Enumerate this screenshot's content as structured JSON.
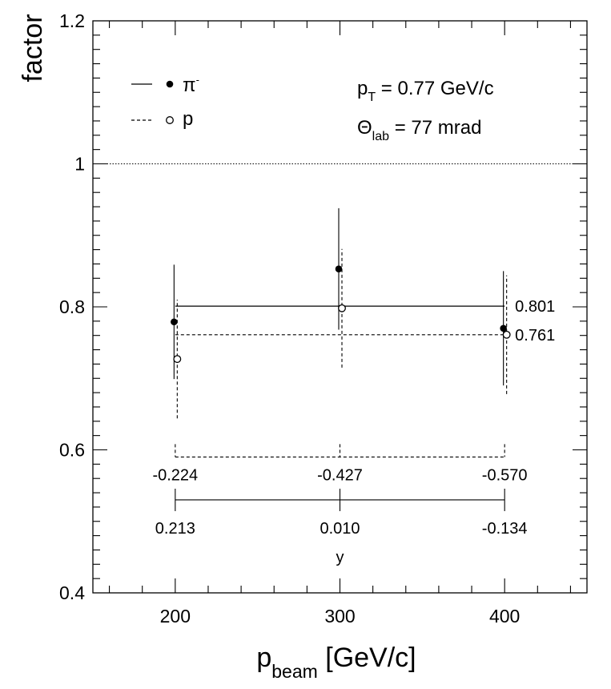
{
  "chart_data": {
    "type": "scatter",
    "xlabel": {
      "main": "p",
      "sub": "beam",
      "rest": " [GeV/c]"
    },
    "ylabel": "factor",
    "xlim": [
      150,
      450
    ],
    "ylim": [
      0.4,
      1.2
    ],
    "x_ticks": [
      200,
      300,
      400
    ],
    "x_tick_labels": [
      "200",
      "300",
      "400"
    ],
    "y_ticks": [
      0.4,
      0.6,
      0.8,
      1,
      1.2
    ],
    "y_tick_labels": [
      "0.4",
      "0.6",
      "0.8",
      "1",
      "1.2"
    ],
    "reference_line": 1.0,
    "series": [
      {
        "name": "π⁻",
        "marker": "filled-circle",
        "line_style": "solid",
        "x": [
          200,
          300,
          400
        ],
        "y": [
          0.779,
          0.853,
          0.77
        ],
        "err_low": [
          0.08,
          0.085,
          0.08
        ],
        "err_high": [
          0.08,
          0.085,
          0.08
        ],
        "mean": 0.801,
        "mean_label": "0.801"
      },
      {
        "name": "p",
        "marker": "open-circle",
        "line_style": "dashed",
        "x": [
          200,
          300,
          400
        ],
        "y": [
          0.727,
          0.798,
          0.761
        ],
        "err_low": [
          0.083,
          0.083,
          0.083
        ],
        "err_high": [
          0.083,
          0.083,
          0.083
        ],
        "mean": 0.761,
        "mean_label": "0.761"
      }
    ],
    "legend": {
      "placement": "top-left",
      "entries": [
        {
          "marker": "filled-circle",
          "line": "solid",
          "label_main": "π",
          "label_sup": "-"
        },
        {
          "marker": "open-circle",
          "line": "dashed",
          "label_main": "p",
          "label_sup": ""
        }
      ]
    },
    "annotations": {
      "pt": {
        "main": "p",
        "sub": "T",
        "rest": " = 0.77 GeV/c"
      },
      "theta": {
        "main": "Θ",
        "sub": "lab",
        "rest": " = 77 mrad"
      }
    },
    "rapidity_scales": [
      {
        "line_style": "dashed",
        "y_level": 0.59,
        "labels": [
          "-0.224",
          "-0.427",
          "-0.570"
        ]
      },
      {
        "line_style": "solid",
        "y_level": 0.53,
        "labels": [
          "0.213",
          "0.010",
          "-0.134"
        ]
      }
    ],
    "rapidity_axis_label": "y"
  }
}
